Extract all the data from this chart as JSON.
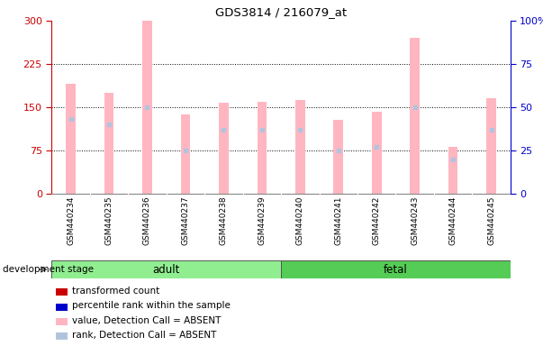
{
  "title": "GDS3814 / 216079_at",
  "samples": [
    "GSM440234",
    "GSM440235",
    "GSM440236",
    "GSM440237",
    "GSM440238",
    "GSM440239",
    "GSM440240",
    "GSM440241",
    "GSM440242",
    "GSM440243",
    "GSM440244",
    "GSM440245"
  ],
  "transformed_count": [
    190,
    175,
    300,
    138,
    158,
    160,
    163,
    128,
    143,
    270,
    82,
    165
  ],
  "percentile_rank": [
    43,
    40,
    50,
    25,
    37,
    37,
    37,
    25,
    27,
    50,
    20,
    37
  ],
  "detection_call": [
    "ABSENT",
    "ABSENT",
    "ABSENT",
    "ABSENT",
    "ABSENT",
    "ABSENT",
    "ABSENT",
    "ABSENT",
    "ABSENT",
    "ABSENT",
    "ABSENT",
    "ABSENT"
  ],
  "groups": [
    {
      "label": "adult",
      "indices": [
        0,
        1,
        2,
        3,
        4,
        5
      ],
      "color": "#90EE90"
    },
    {
      "label": "fetal",
      "indices": [
        6,
        7,
        8,
        9,
        10,
        11
      ],
      "color": "#55CC55"
    }
  ],
  "ylim_left": [
    0,
    300
  ],
  "ylim_right": [
    0,
    100
  ],
  "yticks_left": [
    0,
    75,
    150,
    225,
    300
  ],
  "yticks_right": [
    0,
    25,
    50,
    75,
    100
  ],
  "ytick_labels_right": [
    "0",
    "25",
    "50",
    "75",
    "100%"
  ],
  "bar_color_absent": "#FFB6C1",
  "rank_color_absent": "#B0C4DE",
  "left_axis_color": "#CC0000",
  "right_axis_color": "#0000CC",
  "legend_colors": [
    "#CC0000",
    "#0000CC",
    "#FFB6C1",
    "#B0C4DE"
  ],
  "legend_labels": [
    "transformed count",
    "percentile rank within the sample",
    "value, Detection Call = ABSENT",
    "rank, Detection Call = ABSENT"
  ],
  "group_label_text": "development stage",
  "figsize": [
    6.03,
    3.84
  ],
  "dpi": 100
}
